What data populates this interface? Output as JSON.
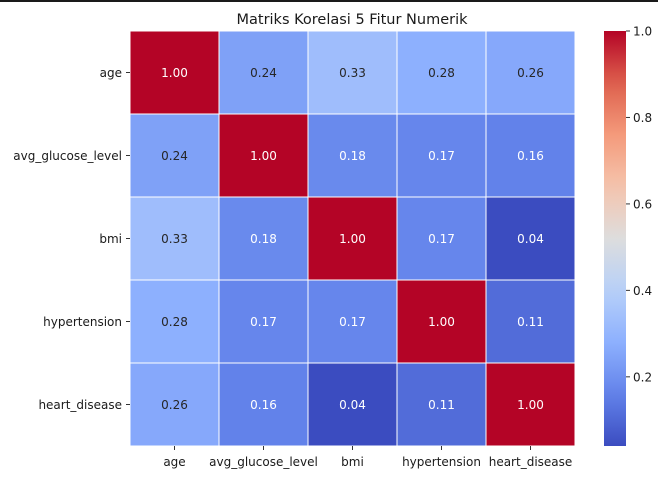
{
  "chart_data": {
    "type": "heatmap",
    "title": "Matriks Korelasi 5 Fitur Numerik",
    "rows": [
      "age",
      "avg_glucose_level",
      "bmi",
      "hypertension",
      "heart_disease"
    ],
    "columns": [
      "age",
      "avg_glucose_level",
      "bmi",
      "hypertension",
      "heart_disease"
    ],
    "values": [
      [
        1.0,
        0.24,
        0.33,
        0.28,
        0.26
      ],
      [
        0.24,
        1.0,
        0.18,
        0.17,
        0.16
      ],
      [
        0.33,
        0.18,
        1.0,
        0.17,
        0.04
      ],
      [
        0.28,
        0.17,
        0.17,
        1.0,
        0.11
      ],
      [
        0.26,
        0.16,
        0.04,
        0.11,
        1.0
      ]
    ],
    "labels": [
      [
        "1.00",
        "0.24",
        "0.33",
        "0.28",
        "0.26"
      ],
      [
        "0.24",
        "1.00",
        "0.18",
        "0.17",
        "0.16"
      ],
      [
        "0.33",
        "0.18",
        "1.00",
        "0.17",
        "0.04"
      ],
      [
        "0.28",
        "0.17",
        "0.17",
        "1.00",
        "0.11"
      ],
      [
        "0.26",
        "0.16",
        "0.04",
        "0.11",
        "1.00"
      ]
    ],
    "colormap": "coolwarm",
    "vmin": 0.04,
    "vmax": 1.0,
    "colorbar_ticks": [
      0.2,
      0.4,
      0.6,
      0.8,
      1.0
    ],
    "colorbar_tick_labels": [
      "0.2",
      "0.4",
      "0.6",
      "0.8",
      "1.0"
    ],
    "grid": true,
    "colorbar_position": "right"
  }
}
